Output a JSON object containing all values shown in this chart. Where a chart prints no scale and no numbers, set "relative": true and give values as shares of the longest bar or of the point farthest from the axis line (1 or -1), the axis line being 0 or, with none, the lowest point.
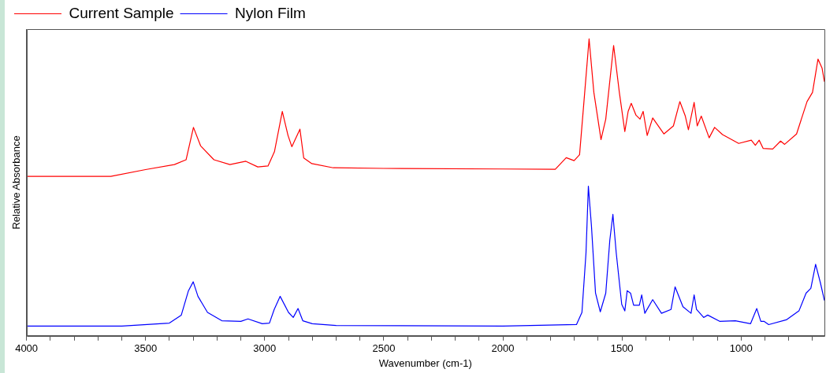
{
  "chart_data": {
    "type": "line",
    "xlabel": "Wavenumber (cm-1)",
    "ylabel": "Relative Absorbance",
    "relative": true,
    "legend": "top left",
    "grid": false,
    "marker": "none",
    "line_style": "solid",
    "xlim": [
      4000,
      650
    ],
    "xticks": [
      4000,
      {
        "value": 3900,
        "label": null
      },
      {
        "value": 3800,
        "label": null
      },
      {
        "value": 3700,
        "label": null
      },
      {
        "value": 3600,
        "label": null
      },
      3500,
      {
        "value": 3400,
        "label": null
      },
      {
        "value": 3300,
        "label": null
      },
      {
        "value": 3200,
        "label": null
      },
      {
        "value": 3100,
        "label": null
      },
      3000,
      {
        "value": 2900,
        "label": null
      },
      {
        "value": 2800,
        "label": null
      },
      {
        "value": 2700,
        "label": null
      },
      {
        "value": 2600,
        "label": null
      },
      2500,
      {
        "value": 2400,
        "label": null
      },
      {
        "value": 2300,
        "label": null
      },
      {
        "value": 2200,
        "label": null
      },
      {
        "value": 2100,
        "label": null
      },
      2000,
      {
        "value": 1900,
        "label": null
      },
      {
        "value": 1800,
        "label": null
      },
      {
        "value": 1700,
        "label": null
      },
      {
        "value": 1600,
        "label": null
      },
      1500,
      {
        "value": 1400,
        "label": null
      },
      {
        "value": 1300,
        "label": null
      },
      {
        "value": 1200,
        "label": null
      },
      {
        "value": 1100,
        "label": null
      },
      1000,
      {
        "value": 900,
        "label": null
      },
      {
        "value": 800,
        "label": null
      },
      {
        "value": 700,
        "label": null
      }
    ],
    "series": [
      {
        "name": "Current Sample",
        "color": "#ff0000",
        "x": [
          4000,
          3646,
          3500,
          3379,
          3330,
          3299,
          3269,
          3213,
          3146,
          3079,
          3029,
          2986,
          2959,
          2926,
          2902,
          2886,
          2852,
          2836,
          2802,
          2712,
          2500,
          2000,
          1780,
          1734,
          1701,
          1678,
          1661,
          1638,
          1618,
          1588,
          1568,
          1535,
          1511,
          1488,
          1474,
          1461,
          1441,
          1424,
          1411,
          1394,
          1371,
          1324,
          1284,
          1257,
          1234,
          1221,
          1197,
          1184,
          1167,
          1134,
          1111,
          1078,
          1010,
          957,
          940,
          924,
          907,
          867,
          834,
          817,
          767,
          723,
          700,
          677,
          660,
          650
        ],
        "values": [
          0.537,
          0.537,
          0.56,
          0.577,
          0.593,
          0.702,
          0.64,
          0.593,
          0.577,
          0.588,
          0.569,
          0.572,
          0.62,
          0.756,
          0.675,
          0.637,
          0.696,
          0.599,
          0.58,
          0.566,
          0.564,
          0.562,
          0.561,
          0.6,
          0.59,
          0.61,
          0.775,
          1.0,
          0.82,
          0.661,
          0.73,
          0.978,
          0.82,
          0.688,
          0.756,
          0.783,
          0.743,
          0.73,
          0.756,
          0.675,
          0.734,
          0.68,
          0.707,
          0.789,
          0.74,
          0.694,
          0.786,
          0.707,
          0.74,
          0.667,
          0.702,
          0.678,
          0.648,
          0.659,
          0.642,
          0.659,
          0.631,
          0.629,
          0.656,
          0.645,
          0.68,
          0.789,
          0.82,
          0.932,
          0.902,
          0.856
        ]
      },
      {
        "name": "Nylon Film",
        "color": "#0000ff",
        "x": [
          4000,
          3600,
          3400,
          3350,
          3320,
          3300,
          3280,
          3240,
          3180,
          3100,
          3070,
          3010,
          2980,
          2960,
          2935,
          2900,
          2880,
          2860,
          2840,
          2800,
          2700,
          2000,
          1691,
          1668,
          1651,
          1641,
          1628,
          1611,
          1591,
          1568,
          1551,
          1538,
          1524,
          1501,
          1488,
          1478,
          1464,
          1451,
          1427,
          1417,
          1404,
          1371,
          1334,
          1294,
          1277,
          1244,
          1210,
          1197,
          1187,
          1157,
          1140,
          1090,
          1024,
          960,
          934,
          917,
          904,
          884,
          810,
          757,
          727,
          707,
          687,
          667,
          650
        ],
        "values": [
          0.033,
          0.033,
          0.043,
          0.07,
          0.152,
          0.182,
          0.133,
          0.079,
          0.051,
          0.049,
          0.057,
          0.041,
          0.043,
          0.089,
          0.133,
          0.079,
          0.062,
          0.092,
          0.051,
          0.041,
          0.035,
          0.033,
          0.038,
          0.079,
          0.279,
          0.504,
          0.369,
          0.144,
          0.081,
          0.144,
          0.322,
          0.409,
          0.279,
          0.106,
          0.084,
          0.152,
          0.144,
          0.103,
          0.103,
          0.138,
          0.076,
          0.122,
          0.076,
          0.089,
          0.165,
          0.098,
          0.076,
          0.138,
          0.089,
          0.062,
          0.07,
          0.049,
          0.051,
          0.041,
          0.092,
          0.049,
          0.049,
          0.038,
          0.054,
          0.084,
          0.144,
          0.16,
          0.241,
          0.179,
          0.119
        ]
      }
    ]
  }
}
